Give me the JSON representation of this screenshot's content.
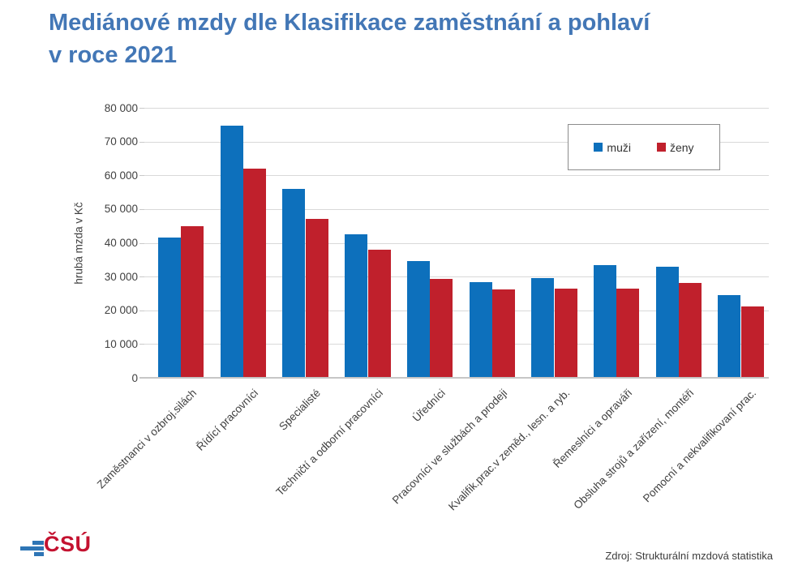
{
  "title": {
    "line1": "Mediánové mzdy dle Klasifikace zaměstnání a pohlaví",
    "line2": "v roce 2021"
  },
  "chart_data": {
    "type": "bar",
    "title": "Mediánové mzdy dle Klasifikace zaměstnání a pohlaví v roce 2021",
    "categories": [
      "Zaměstnanci v ozbroj.silách",
      "Řídící pracovníci",
      "Specialisté",
      "Techničtí a odborní pracovníci",
      "Úředníci",
      "Pracovníci ve službách a prodeji",
      "Kvalifik.prac.v zeměd., lesn. a ryb.",
      "Řemeslníci a opraváři",
      "Obsluha strojů a zařízení, montéři",
      "Pomocní a nekvalifikovaní prac."
    ],
    "series": [
      {
        "name": "muži",
        "color": "#0d70bc",
        "values": [
          41500,
          74700,
          56000,
          42600,
          34600,
          28300,
          29500,
          33400,
          33000,
          24500
        ]
      },
      {
        "name": "ženy",
        "color": "#c0202c",
        "values": [
          45000,
          62000,
          47200,
          38000,
          29400,
          26200,
          26400,
          26500,
          28100,
          21200
        ]
      }
    ],
    "xlabel": "",
    "ylabel": "hrubá mzda v Kč",
    "ylim": [
      0,
      80000
    ],
    "ytick_step": 10000,
    "ytick_labels": [
      "0",
      "10 000",
      "20 000",
      "30 000",
      "40 000",
      "50 000",
      "60 000",
      "70 000",
      "80 000"
    ],
    "grid": true,
    "legend_position": "top-right"
  },
  "legend": {
    "items": [
      {
        "label": "muži",
        "color": "#0d70bc"
      },
      {
        "label": "ženy",
        "color": "#c0202c"
      }
    ]
  },
  "footer": {
    "logo_text": "ČSÚ",
    "source": "Zdroj: Strukturální mzdová statistika"
  },
  "colors": {
    "title": "#4377b6",
    "gridline": "#d9d9d9",
    "axis_text": "#404040",
    "logo_blue": "#2e75b5",
    "logo_red": "#c41230"
  }
}
